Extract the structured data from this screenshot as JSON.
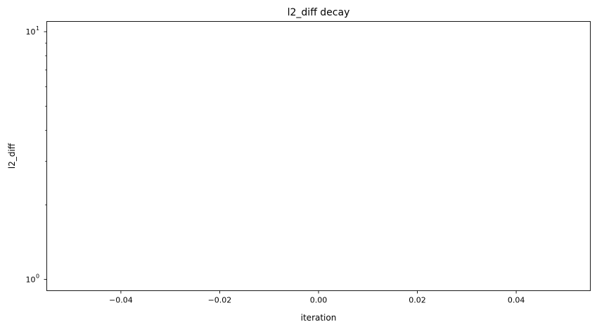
{
  "chart_data": {
    "type": "line",
    "title": "l2_diff decay",
    "xlabel": "iteration",
    "ylabel": "l2_diff",
    "series": [],
    "x_scale": "linear",
    "y_scale": "log",
    "xlim": [
      -0.055,
      0.055
    ],
    "ylim": [
      0.9,
      11.0
    ],
    "x_ticks": [
      -0.04,
      -0.02,
      0.0,
      0.02,
      0.04
    ],
    "x_tick_labels": [
      "−0.04",
      "−0.02",
      "0.00",
      "0.02",
      "0.04"
    ],
    "y_major_ticks": [
      1,
      10
    ],
    "y_major_tick_labels": [
      {
        "base": "10",
        "exponent": "0"
      },
      {
        "base": "10",
        "exponent": "1"
      }
    ],
    "y_minor_ticks": [
      2,
      3,
      4,
      5,
      6,
      7,
      8,
      9
    ],
    "grid": false,
    "legend": "none"
  }
}
